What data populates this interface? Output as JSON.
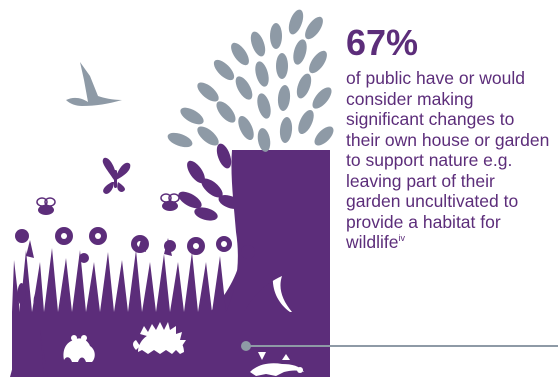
{
  "stat": {
    "value": "67%",
    "description": "of public have or would consider making significant changes to their own house or garden to support nature e.g. leaving part of their garden uncultivated to provide a habitat for wildlife",
    "footnote_marker": "iv"
  },
  "illustration": {
    "subjects": [
      "tree",
      "bird",
      "butterfly",
      "bee",
      "bee",
      "flowers",
      "grass",
      "reeds",
      "frog",
      "hedgehog",
      "lizard"
    ],
    "colors": {
      "primary": "#5c2d7a",
      "leaf": "#8e9aa6",
      "connector": "#8e9aa6"
    }
  }
}
